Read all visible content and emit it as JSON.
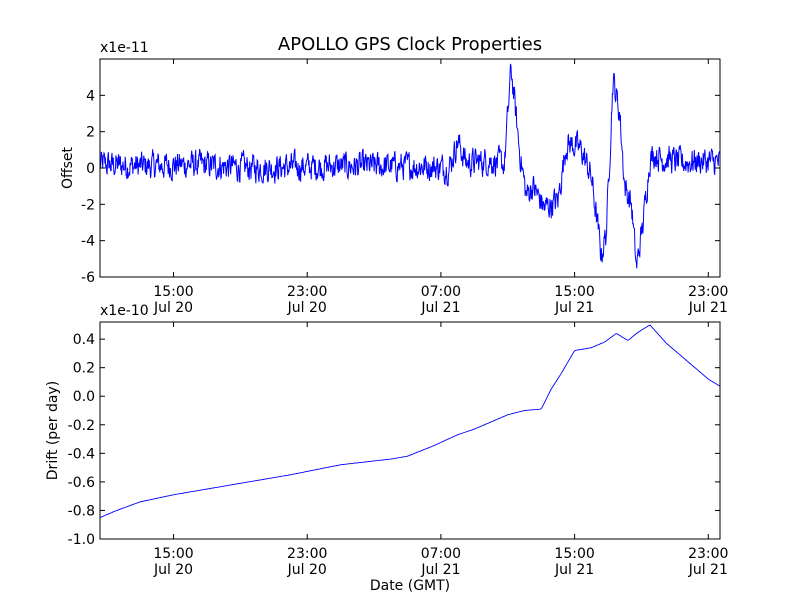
{
  "chart_data": {
    "title": "APOLLO GPS Clock Properties",
    "type": "line",
    "x_tick_labels": [
      {
        "time": "15:00",
        "date": "Jul 20"
      },
      {
        "time": "23:00",
        "date": "Jul 20"
      },
      {
        "time": "07:00",
        "date": "Jul 21"
      },
      {
        "time": "15:00",
        "date": "Jul 21"
      },
      {
        "time": "23:00",
        "date": "Jul 21"
      }
    ],
    "x_tick_hours": [
      15,
      23,
      31,
      39,
      47
    ],
    "xlim_hours": [
      10.6,
      47.7
    ],
    "xlabel": "Date (GMT)",
    "line_color": "#0000ff",
    "panels": [
      {
        "ylabel": "Offset",
        "offset_label": "x1e-11",
        "ylim": [
          -6,
          6
        ],
        "yticks": [
          -6,
          -4,
          -2,
          0,
          2,
          4
        ],
        "ytick_labels": [
          "-6",
          "-4",
          "-2",
          "0",
          "2",
          "4"
        ],
        "noise_amplitude": 0.65,
        "series": {
          "x_hours": [
            10.6,
            13,
            16,
            20,
            24,
            28,
            30,
            31.5,
            32,
            32.5,
            34,
            34.8,
            35.2,
            35.7,
            36.1,
            36.5,
            37.2,
            38,
            38.5,
            38.9,
            39.4,
            40,
            40.6,
            40.9,
            41.3,
            41.7,
            42.0,
            42.4,
            42.7,
            43.1,
            43.5,
            43.8,
            44.2,
            44.6,
            45.5,
            46.5,
            47.7
          ],
          "y": [
            0.2,
            0.1,
            0.2,
            0.0,
            0.1,
            0.1,
            0.1,
            0.0,
            1.5,
            0.3,
            0.4,
            0.2,
            5.5,
            1.0,
            -1.5,
            -1.0,
            -2.2,
            -1.8,
            1.3,
            1.3,
            1.0,
            -0.5,
            -4.8,
            -3.5,
            4.9,
            3.0,
            -1.0,
            -2.0,
            -5.5,
            -3.0,
            0.5,
            0.8,
            0.5,
            0.5,
            0.3,
            0.4,
            0.3
          ]
        }
      },
      {
        "ylabel": "Drift (per day)",
        "offset_label": "x1e-10",
        "ylim": [
          -1.0,
          0.52
        ],
        "yticks": [
          -1.0,
          -0.8,
          -0.6,
          -0.4,
          -0.2,
          0.0,
          0.2,
          0.4
        ],
        "ytick_labels": [
          "-1.0",
          "-0.8",
          "-0.6",
          "-0.4",
          "-0.2",
          "0.0",
          "0.2",
          "0.4"
        ],
        "noise_amplitude": 0,
        "series": {
          "x_hours": [
            10.6,
            11.6,
            13,
            15,
            18,
            22,
            25,
            28,
            29,
            30.5,
            32,
            33,
            34.2,
            35.0,
            36.0,
            37.0,
            37.6,
            38.2,
            39.0,
            40.0,
            40.8,
            41.5,
            42.2,
            42.7,
            43.5,
            44.5,
            46.0,
            47.0,
            47.7
          ],
          "y": [
            -0.85,
            -0.8,
            -0.74,
            -0.69,
            -0.63,
            -0.55,
            -0.48,
            -0.44,
            -0.42,
            -0.35,
            -0.27,
            -0.23,
            -0.17,
            -0.13,
            -0.1,
            -0.09,
            0.05,
            0.16,
            0.32,
            0.34,
            0.38,
            0.44,
            0.39,
            0.44,
            0.5,
            0.37,
            0.22,
            0.12,
            0.07
          ]
        }
      }
    ]
  }
}
